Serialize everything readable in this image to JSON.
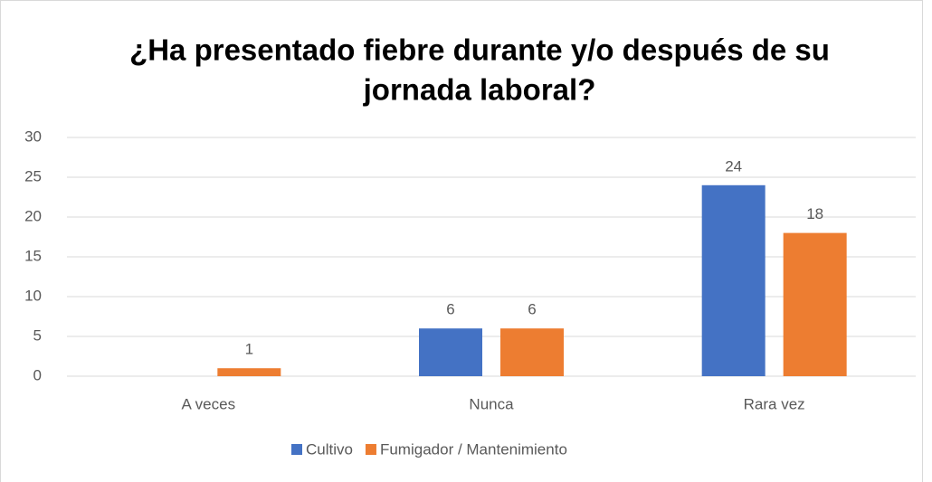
{
  "chart_data": {
    "type": "bar",
    "title": [
      "¿Ha presentado fiebre durante y/o después de su",
      "jornada laboral?"
    ],
    "categories": [
      "A veces",
      "Nunca",
      "Rara vez"
    ],
    "series": [
      {
        "name": "Cultivo",
        "color": "#4472c4",
        "values": [
          null,
          6,
          24
        ]
      },
      {
        "name": "Fumigador / Mantenimiento",
        "color": "#ed7d31",
        "values": [
          1,
          6,
          18
        ]
      }
    ],
    "ylim": [
      0,
      30
    ],
    "yticks": [
      0,
      5,
      10,
      15,
      20,
      25,
      30
    ],
    "grid": true,
    "legend": "bottom"
  }
}
